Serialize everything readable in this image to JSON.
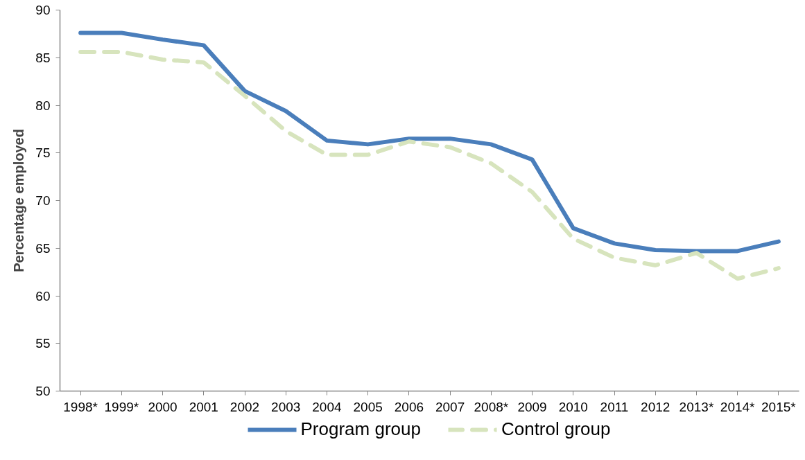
{
  "chart_data": {
    "type": "line",
    "ylabel": "Percentage employed",
    "categories": [
      "1998*",
      "1999*",
      "2000",
      "2001",
      "2002",
      "2003",
      "2004",
      "2005",
      "2006",
      "2007",
      "2008*",
      "2009",
      "2010",
      "2011",
      "2012",
      "2013*",
      "2014*",
      "2015*"
    ],
    "series": [
      {
        "name": "Program group",
        "color": "#4a7ebb",
        "line_style": "solid",
        "values": [
          87.6,
          87.6,
          86.9,
          86.3,
          81.5,
          79.4,
          76.3,
          75.9,
          76.5,
          76.5,
          75.9,
          74.3,
          67.1,
          65.5,
          64.8,
          64.7,
          64.7,
          65.7
        ]
      },
      {
        "name": "Control group",
        "color": "#d7e4bd",
        "line_style": "dashed",
        "values": [
          85.6,
          85.6,
          84.8,
          84.5,
          81.0,
          77.3,
          74.8,
          74.8,
          76.2,
          75.6,
          73.9,
          70.9,
          66.0,
          64.0,
          63.2,
          64.5,
          61.8,
          62.9
        ]
      }
    ],
    "ylim": [
      50,
      90
    ],
    "yticks": [
      50,
      55,
      60,
      65,
      70,
      75,
      80,
      85,
      90
    ],
    "grid": false,
    "legend": "bottom"
  }
}
